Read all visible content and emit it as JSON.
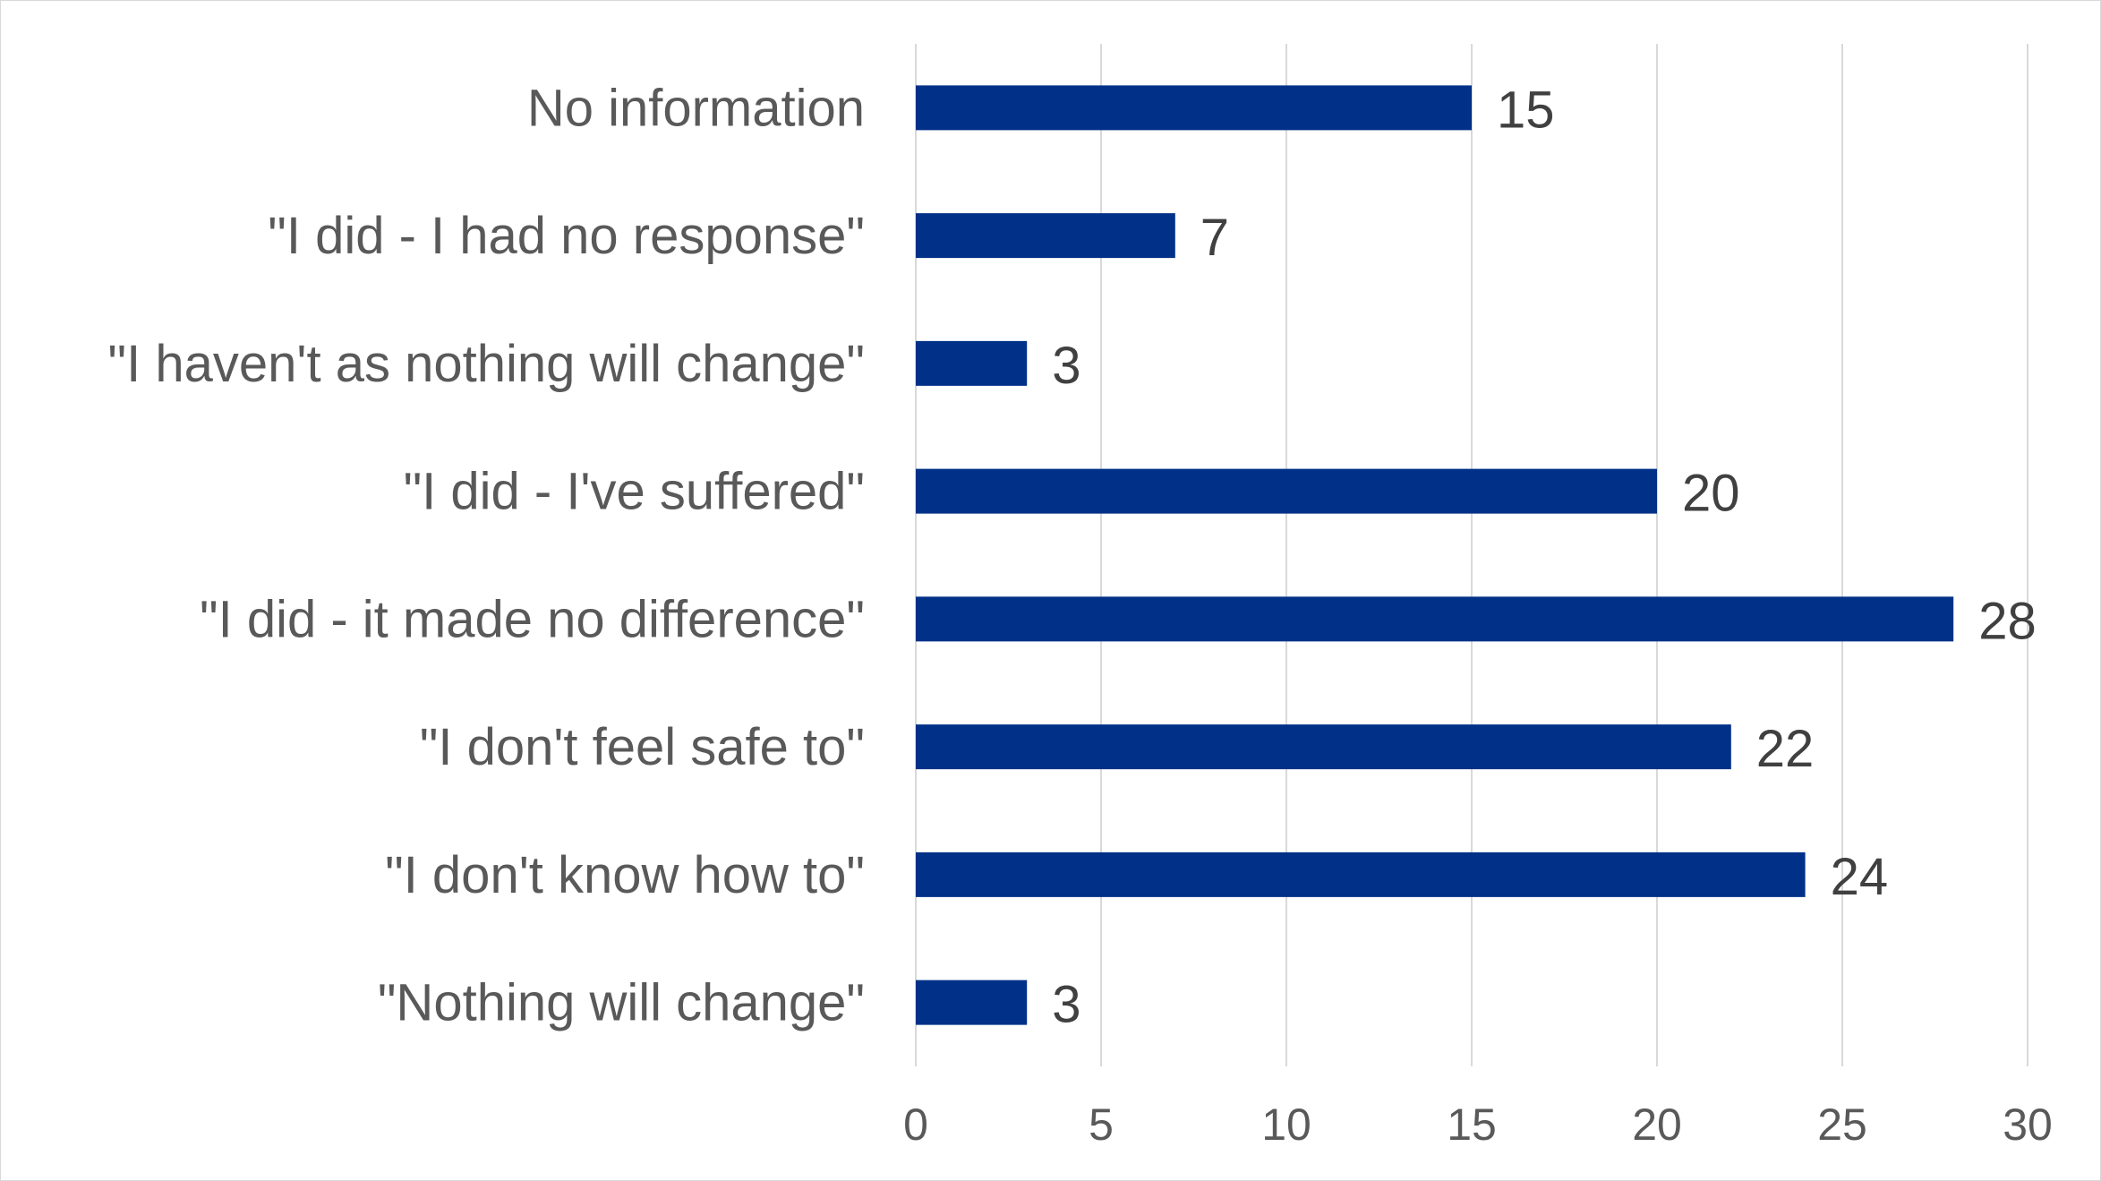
{
  "chart_data": {
    "type": "bar",
    "orientation": "horizontal",
    "categories": [
      "No information",
      "\"I did - I had no response\"",
      "\"I haven't as nothing will change\"",
      "\"I did - I've suffered\"",
      "\"I did - it made no difference\"",
      "\"I don't feel safe to\"",
      "\"I don't know how to\"",
      "\"Nothing will change\""
    ],
    "values": [
      15,
      7,
      3,
      20,
      28,
      22,
      24,
      3
    ],
    "data_labels": [
      "15",
      "7",
      "3",
      "20",
      "28",
      "22",
      "24",
      "3"
    ],
    "xlim": [
      0,
      30
    ],
    "x_ticks": [
      0,
      5,
      10,
      15,
      20,
      25,
      30
    ],
    "x_tick_labels": [
      "0",
      "5",
      "10",
      "15",
      "20",
      "25",
      "30"
    ],
    "grid": true,
    "legend": "none",
    "bar_color": "#003087",
    "grid_color": "#d9d9d9"
  }
}
